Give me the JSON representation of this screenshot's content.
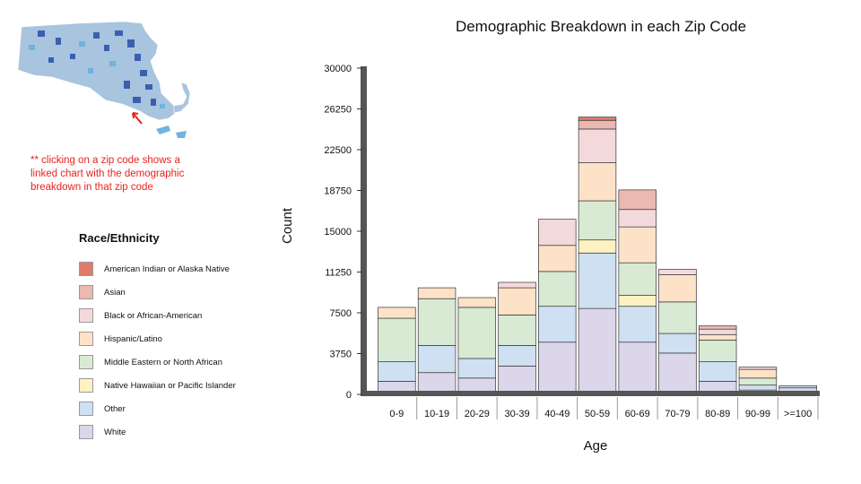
{
  "note": "** clicking on a zip code shows a linked chart with the demographic breakdown in that zip code",
  "legend": {
    "title": "Race/Ethnicity",
    "items": [
      {
        "label": "American Indian or Alaska Native",
        "color": "#e07b6a"
      },
      {
        "label": "Asian",
        "color": "#ebb8b2"
      },
      {
        "label": "Black or African-American",
        "color": "#f4d9dc"
      },
      {
        "label": "Hispanic/Latino",
        "color": "#fde2c8"
      },
      {
        "label": "Middle Eastern or North African",
        "color": "#d8ead3"
      },
      {
        "label": "Native Hawaiian or Pacific Islander",
        "color": "#fff2c2"
      },
      {
        "label": "Other",
        "color": "#cfe0f3"
      },
      {
        "label": "White",
        "color": "#dcd6ea"
      }
    ]
  },
  "chart_data": {
    "type": "bar",
    "stacked": true,
    "title": "Demographic Breakdown in each Zip Code",
    "xlabel": "Age",
    "ylabel": "Count",
    "ylim": [
      0,
      30000
    ],
    "yticks": [
      "0",
      "3750",
      "7500",
      "11250",
      "15000",
      "18750",
      "22500",
      "26250",
      "30000"
    ],
    "categories": [
      "0-9",
      "10-19",
      "20-29",
      "30-39",
      "40-49",
      "50-59",
      "60-69",
      "70-79",
      "80-89",
      "90-99",
      ">=100"
    ],
    "series": [
      {
        "name": "White",
        "values": [
          1200,
          2000,
          1500,
          2600,
          4800,
          7900,
          4800,
          3800,
          1200,
          400,
          600
        ]
      },
      {
        "name": "Other",
        "values": [
          1800,
          2500,
          1800,
          1900,
          3300,
          5100,
          3300,
          1800,
          1800,
          450,
          200
        ]
      },
      {
        "name": "Native Hawaiian or Pacific Islander",
        "values": [
          0,
          0,
          0,
          0,
          0,
          1200,
          1000,
          0,
          0,
          0,
          0
        ]
      },
      {
        "name": "Middle Eastern or North African",
        "values": [
          4000,
          4300,
          4700,
          2800,
          3200,
          3600,
          3000,
          2900,
          2000,
          650,
          0
        ]
      },
      {
        "name": "Hispanic/Latino",
        "values": [
          1000,
          1000,
          900,
          2500,
          2400,
          3500,
          3300,
          2500,
          500,
          800,
          0
        ]
      },
      {
        "name": "Black or African-American",
        "values": [
          0,
          0,
          0,
          500,
          2400,
          3100,
          1600,
          500,
          500,
          200,
          0
        ]
      },
      {
        "name": "Asian",
        "values": [
          0,
          0,
          0,
          0,
          0,
          800,
          1800,
          0,
          300,
          0,
          0
        ]
      },
      {
        "name": "American Indian or Alaska Native",
        "values": [
          0,
          0,
          0,
          0,
          0,
          300,
          0,
          0,
          0,
          0,
          0
        ]
      }
    ]
  }
}
